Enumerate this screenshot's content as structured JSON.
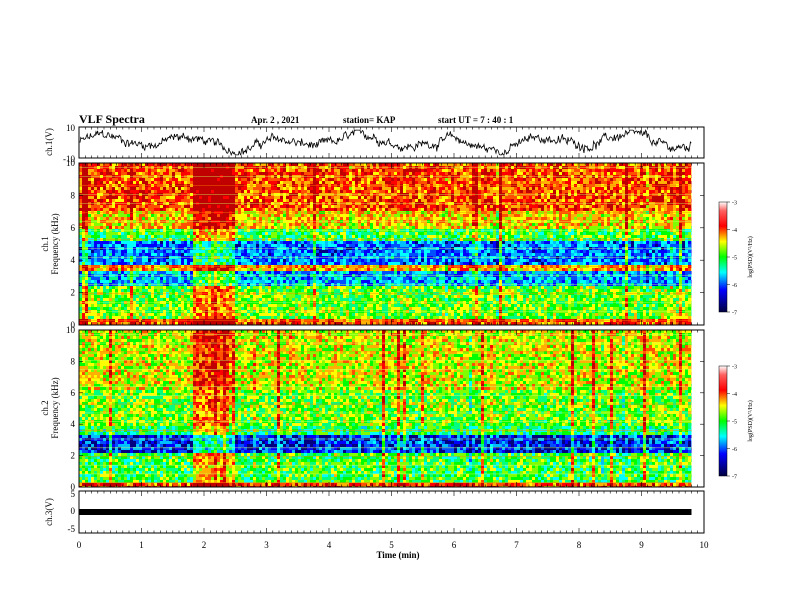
{
  "header": {
    "title": "VLF Spectra",
    "date": "Apr. 2 , 2021",
    "station": "station= KAP",
    "start": "start UT = 7 : 40 : 1"
  },
  "chart_data": [
    {
      "type": "line",
      "ylabel": "ch.1(V)",
      "ylim": [
        -10,
        10
      ],
      "yticks": [
        "10",
        "-10"
      ],
      "xlim": [
        0,
        10
      ],
      "series_color": "#000000",
      "data_end_min": 9.8,
      "amplitude_approx": [
        -8,
        8
      ]
    },
    {
      "type": "heatmap",
      "ylabel_top": "ch.1",
      "ylabel": "Frequency (kHz)",
      "ylim": [
        0,
        10
      ],
      "yticks": [
        "0",
        "2",
        "4",
        "6",
        "8",
        "10"
      ],
      "xlim": [
        0,
        10
      ],
      "data_end_min": 9.8,
      "colorbar": {
        "label": "log(PSD)(V²/Hz)",
        "range": [
          -7,
          -3
        ],
        "ticks": [
          "-3",
          "-4",
          "-5",
          "-6",
          "-7"
        ],
        "colors": [
          "#800000",
          "#ff0000",
          "#ffff00",
          "#00ff00",
          "#00ffff",
          "#0000ff",
          "#000080"
        ]
      },
      "burst_window_min": [
        1.8,
        2.45
      ]
    },
    {
      "type": "heatmap",
      "ylabel_top": "ch.2",
      "ylabel": "Frequency (kHz)",
      "ylim": [
        0,
        10
      ],
      "yticks": [
        "0",
        "2",
        "4",
        "6",
        "8",
        "10"
      ],
      "xlim": [
        0,
        10
      ],
      "data_end_min": 9.8,
      "colorbar": {
        "label": "log(PSD)(V²/Hz)",
        "range": [
          -7,
          -3
        ],
        "ticks": [
          "-3",
          "-4",
          "-5",
          "-6",
          "-7"
        ],
        "colors": [
          "#800000",
          "#ff0000",
          "#ffff00",
          "#00ff00",
          "#00ffff",
          "#0000ff",
          "#000080"
        ]
      },
      "burst_window_min": [
        1.8,
        2.45
      ]
    },
    {
      "type": "line",
      "ylabel": "ch.3(V)",
      "ylim": [
        -5,
        5
      ],
      "yticks": [
        "5",
        "0",
        "-5"
      ],
      "xlim": [
        0,
        10
      ],
      "xlabel": "Time (min)",
      "xticks": [
        "0",
        "1",
        "2",
        "3",
        "4",
        "5",
        "6",
        "7",
        "8",
        "9",
        "10"
      ],
      "data_end_min": 9.8,
      "constant_value_approx": 0
    }
  ]
}
